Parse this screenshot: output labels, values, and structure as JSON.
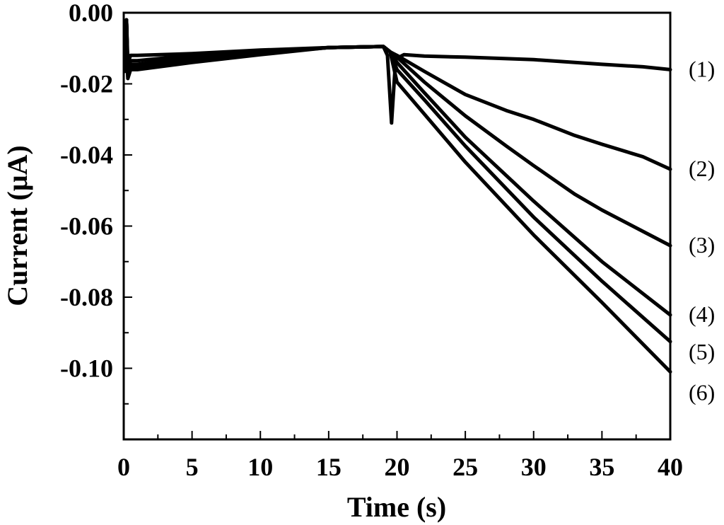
{
  "chart_data": {
    "type": "line",
    "title": "",
    "xlabel": "Time (s)",
    "ylabel": "Current (μA)",
    "xlim": [
      0,
      40
    ],
    "ylim": [
      -0.12,
      0
    ],
    "grid": false,
    "legend": "none",
    "x_ticks": [
      0,
      5,
      10,
      15,
      20,
      25,
      30,
      35,
      40
    ],
    "x_tick_labels": [
      "0",
      "5",
      "10",
      "15",
      "20",
      "25",
      "30",
      "35",
      "40"
    ],
    "y_ticks": [
      0,
      -0.02,
      -0.04,
      -0.06,
      -0.08,
      -0.1
    ],
    "y_tick_labels": [
      "0.00",
      "-0.02",
      "-0.04",
      "-0.06",
      "-0.08",
      "-0.10"
    ],
    "line_color": "#000000",
    "series": [
      {
        "name": "(1)",
        "x": [
          0.1,
          0.2,
          0.3,
          0.5,
          1,
          5,
          10,
          15,
          19,
          19.3,
          19.6,
          19.9,
          20.5,
          22,
          25,
          30,
          35,
          38,
          40
        ],
        "y": [
          -0.012,
          -0.002,
          -0.014,
          -0.012,
          -0.012,
          -0.0115,
          -0.0105,
          -0.0098,
          -0.0095,
          -0.012,
          -0.031,
          -0.013,
          -0.0118,
          -0.0122,
          -0.0125,
          -0.0132,
          -0.0145,
          -0.0152,
          -0.016
        ]
      },
      {
        "name": "(2)",
        "x": [
          0.1,
          0.2,
          0.3,
          0.5,
          1,
          5,
          10,
          15,
          19,
          19.5,
          20,
          22,
          25,
          28,
          30,
          33,
          35,
          38,
          40
        ],
        "y": [
          -0.014,
          -0.002,
          -0.016,
          -0.0135,
          -0.0135,
          -0.012,
          -0.011,
          -0.0098,
          -0.0095,
          -0.011,
          -0.012,
          -0.0165,
          -0.023,
          -0.0275,
          -0.03,
          -0.0345,
          -0.037,
          -0.0405,
          -0.044
        ]
      },
      {
        "name": "(3)",
        "x": [
          0.1,
          0.2,
          0.3,
          0.5,
          1,
          5,
          10,
          15,
          19,
          19.5,
          20,
          22,
          25,
          28,
          30,
          33,
          35,
          38,
          40
        ],
        "y": [
          -0.015,
          -0.002,
          -0.017,
          -0.0145,
          -0.0145,
          -0.0125,
          -0.011,
          -0.0098,
          -0.0095,
          -0.011,
          -0.0125,
          -0.0195,
          -0.029,
          -0.0375,
          -0.043,
          -0.051,
          -0.0555,
          -0.0615,
          -0.0655
        ]
      },
      {
        "name": "(4)",
        "x": [
          0.1,
          0.2,
          0.3,
          0.5,
          1,
          5,
          10,
          15,
          19,
          19.5,
          20,
          22,
          25,
          30,
          35,
          40
        ],
        "y": [
          -0.0155,
          -0.002,
          -0.0175,
          -0.015,
          -0.015,
          -0.013,
          -0.0112,
          -0.0098,
          -0.0095,
          -0.011,
          -0.014,
          -0.0225,
          -0.035,
          -0.053,
          -0.07,
          -0.085
        ]
      },
      {
        "name": "(5)",
        "x": [
          0.1,
          0.2,
          0.3,
          0.5,
          1,
          5,
          10,
          15,
          19,
          19.5,
          20,
          22,
          25,
          30,
          35,
          40
        ],
        "y": [
          -0.016,
          -0.002,
          -0.018,
          -0.0155,
          -0.0155,
          -0.0135,
          -0.0115,
          -0.0098,
          -0.0095,
          -0.011,
          -0.016,
          -0.0245,
          -0.0375,
          -0.0575,
          -0.0755,
          -0.0925
        ]
      },
      {
        "name": "(6)",
        "x": [
          0.1,
          0.2,
          0.3,
          0.5,
          1,
          5,
          10,
          15,
          19,
          19.5,
          20,
          22,
          25,
          30,
          35,
          40
        ],
        "y": [
          -0.0165,
          -0.002,
          -0.0185,
          -0.016,
          -0.016,
          -0.014,
          -0.0118,
          -0.0098,
          -0.0095,
          -0.011,
          -0.0195,
          -0.0285,
          -0.042,
          -0.0625,
          -0.0815,
          -0.101
        ]
      }
    ]
  }
}
